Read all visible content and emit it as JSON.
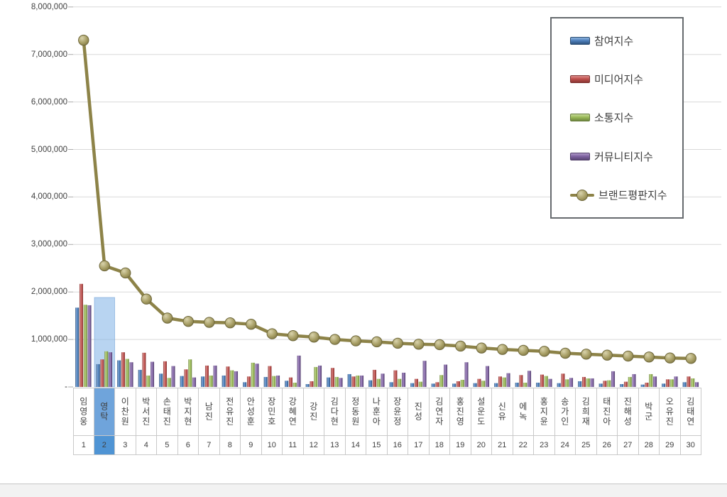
{
  "colors": {
    "participation_blue": "#4F81BD",
    "media_red": "#C0504D",
    "communication_green": "#9BBB59",
    "community_purple": "#8064A2",
    "brand_line_olive": "#8D8348",
    "gridline": "#D9D9D9",
    "tick": "#ABABAB",
    "highlight_band": "rgba(126,176,229,0.55)",
    "highlight_cell_name": "#6FA4DB",
    "highlight_cell_rank": "#4F94D4",
    "axis_text": "#404040"
  },
  "legend": {
    "items": [
      {
        "label": "참여지수",
        "swatch": "blue-bar-swatch"
      },
      {
        "label": "미디어지수",
        "swatch": "red-bar-swatch"
      },
      {
        "label": "소통지수",
        "swatch": "green-bar-swatch"
      },
      {
        "label": "커뮤니티지수",
        "swatch": "purple-bar-swatch"
      },
      {
        "label": "브랜드평판지수",
        "swatch": "olive-line-marker-swatch"
      }
    ]
  },
  "y_axis": {
    "tick_labels_top_to_bottom": [
      "8,000,000",
      "7,000,000",
      "6,000,000",
      "5,000,000",
      "4,000,000",
      "3,000,000",
      "2,000,000",
      "1,000,000",
      "-"
    ]
  },
  "chart_data": {
    "type": "bar",
    "subtype": "clustered-bars-with-line-overlay",
    "title": "",
    "xlabel": "",
    "ylabel": "",
    "ylim": [
      0,
      8000000
    ],
    "grid": true,
    "legend_position": "top-right",
    "categories": [
      "임영웅",
      "영탁",
      "이찬원",
      "박서진",
      "손태진",
      "박지현",
      "남진",
      "전유진",
      "안성훈",
      "장민호",
      "강혜연",
      "강진",
      "김다현",
      "정동원",
      "나훈아",
      "장윤정",
      "진성",
      "김연자",
      "홍진영",
      "설운도",
      "신유",
      "에녹",
      "홍지윤",
      "송가인",
      "김희재",
      "태진아",
      "진해성",
      "박군",
      "오유진",
      "김태연"
    ],
    "ranks": [
      1,
      2,
      3,
      4,
      5,
      6,
      7,
      8,
      9,
      10,
      11,
      12,
      13,
      14,
      15,
      16,
      17,
      18,
      19,
      20,
      21,
      22,
      23,
      24,
      25,
      26,
      27,
      28,
      29,
      30
    ],
    "highlighted_rank": 2,
    "highlighted_category": "영탁",
    "series": [
      {
        "name": "참여지수",
        "type": "bar",
        "color": "#4F81BD",
        "values": [
          1670000,
          480000,
          560000,
          360000,
          280000,
          230000,
          220000,
          240000,
          100000,
          210000,
          130000,
          60000,
          200000,
          270000,
          140000,
          100000,
          80000,
          70000,
          70000,
          80000,
          80000,
          90000,
          90000,
          80000,
          120000,
          70000,
          60000,
          50000,
          70000,
          100000
        ]
      },
      {
        "name": "미디어지수",
        "type": "bar",
        "color": "#C0504D",
        "values": [
          2170000,
          580000,
          730000,
          720000,
          540000,
          370000,
          450000,
          430000,
          220000,
          440000,
          200000,
          120000,
          400000,
          220000,
          360000,
          350000,
          170000,
          100000,
          120000,
          170000,
          220000,
          250000,
          260000,
          280000,
          210000,
          130000,
          110000,
          90000,
          160000,
          220000
        ]
      },
      {
        "name": "소통지수",
        "type": "bar",
        "color": "#9BBB59",
        "values": [
          1730000,
          750000,
          590000,
          240000,
          190000,
          580000,
          240000,
          350000,
          510000,
          230000,
          90000,
          420000,
          210000,
          240000,
          170000,
          170000,
          110000,
          250000,
          150000,
          130000,
          200000,
          90000,
          230000,
          160000,
          180000,
          140000,
          210000,
          270000,
          160000,
          180000
        ]
      },
      {
        "name": "커뮤니티지수",
        "type": "bar",
        "color": "#8064A2",
        "values": [
          1720000,
          730000,
          520000,
          530000,
          440000,
          200000,
          450000,
          330000,
          490000,
          240000,
          660000,
          450000,
          190000,
          240000,
          280000,
          300000,
          550000,
          470000,
          520000,
          440000,
          290000,
          340000,
          170000,
          190000,
          180000,
          330000,
          270000,
          220000,
          220000,
          100000
        ]
      },
      {
        "name": "브랜드평판지수",
        "type": "line",
        "color": "#8D8348",
        "values": [
          7300000,
          2550000,
          2400000,
          1850000,
          1450000,
          1380000,
          1360000,
          1350000,
          1320000,
          1120000,
          1080000,
          1050000,
          1000000,
          970000,
          950000,
          920000,
          900000,
          890000,
          860000,
          820000,
          790000,
          770000,
          750000,
          710000,
          690000,
          670000,
          650000,
          630000,
          610000,
          600000
        ]
      }
    ]
  }
}
